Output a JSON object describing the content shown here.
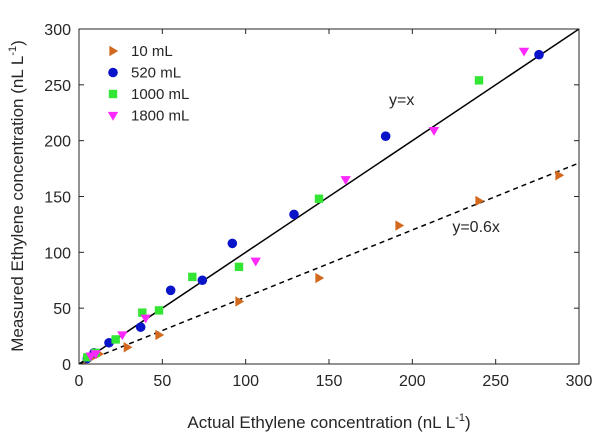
{
  "chart_data": {
    "type": "scatter",
    "xlabel": "Actual Ethylene concentration (nL L",
    "xlabel_sup": "-1",
    "xlabel_end": ")",
    "ylabel": "Measured Ethylene concentration (nL L",
    "ylabel_sup": "-1",
    "ylabel_end": ")",
    "xlim": [
      0,
      300
    ],
    "ylim": [
      0,
      300
    ],
    "xticks": [
      0,
      50,
      100,
      150,
      200,
      250,
      300
    ],
    "yticks": [
      0,
      50,
      100,
      150,
      200,
      250,
      300
    ],
    "grid": false,
    "legend_position": "top-left",
    "series": [
      {
        "name": "10 mL",
        "marker": "triangle-right",
        "color": "#d2691e",
        "points": [
          [
            5,
            4
          ],
          [
            8,
            6
          ],
          [
            12,
            9
          ],
          [
            29,
            15
          ],
          [
            48,
            26
          ],
          [
            96,
            56
          ],
          [
            144,
            77
          ],
          [
            192,
            124
          ],
          [
            240,
            146
          ],
          [
            288,
            169
          ]
        ]
      },
      {
        "name": "520 mL",
        "marker": "circle",
        "color": "#0a14c8",
        "points": [
          [
            5,
            5
          ],
          [
            9,
            10
          ],
          [
            18,
            19
          ],
          [
            37,
            33
          ],
          [
            55,
            66
          ],
          [
            74,
            75
          ],
          [
            92,
            108
          ],
          [
            129,
            134
          ],
          [
            184,
            204
          ],
          [
            276,
            277
          ]
        ]
      },
      {
        "name": "1000 mL",
        "marker": "square",
        "color": "#33e633",
        "points": [
          [
            5,
            6
          ],
          [
            10,
            10
          ],
          [
            22,
            22
          ],
          [
            38,
            46
          ],
          [
            48,
            48
          ],
          [
            68,
            78
          ],
          [
            96,
            87
          ],
          [
            144,
            148
          ],
          [
            240,
            254
          ]
        ]
      },
      {
        "name": "1800 mL",
        "marker": "triangle-down",
        "color": "#ff28ff",
        "points": [
          [
            7,
            7
          ],
          [
            10,
            9
          ],
          [
            26,
            26
          ],
          [
            40,
            41
          ],
          [
            106,
            92
          ],
          [
            160,
            165
          ],
          [
            213,
            209
          ],
          [
            267,
            280
          ]
        ]
      }
    ],
    "reference_lines": [
      {
        "label": "y=x",
        "slope": 1,
        "style": "solid",
        "label_at": [
          186,
          232
        ]
      },
      {
        "label": "y=0.6x",
        "slope": 0.6,
        "style": "dashed",
        "label_at": [
          224,
          118
        ]
      }
    ]
  }
}
